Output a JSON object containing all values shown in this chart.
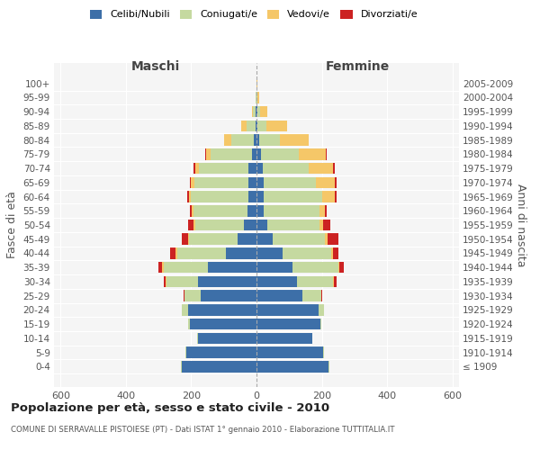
{
  "age_groups": [
    "100+",
    "95-99",
    "90-94",
    "85-89",
    "80-84",
    "75-79",
    "70-74",
    "65-69",
    "60-64",
    "55-59",
    "50-54",
    "45-49",
    "40-44",
    "35-39",
    "30-34",
    "25-29",
    "20-24",
    "15-19",
    "10-14",
    "5-9",
    "0-4"
  ],
  "birth_years": [
    "≤ 1909",
    "1910-1914",
    "1915-1919",
    "1920-1924",
    "1925-1929",
    "1930-1934",
    "1935-1939",
    "1940-1944",
    "1945-1949",
    "1950-1954",
    "1955-1959",
    "1960-1964",
    "1965-1969",
    "1970-1974",
    "1975-1979",
    "1980-1984",
    "1985-1989",
    "1990-1994",
    "1995-1999",
    "2000-2004",
    "2005-2009"
  ],
  "males": {
    "celibi": [
      0,
      1,
      2,
      4,
      8,
      15,
      25,
      25,
      25,
      28,
      38,
      58,
      95,
      150,
      180,
      170,
      210,
      205,
      180,
      215,
      230
    ],
    "coniugati": [
      1,
      2,
      8,
      25,
      70,
      125,
      150,
      165,
      175,
      165,
      150,
      148,
      148,
      135,
      95,
      50,
      18,
      4,
      2,
      2,
      2
    ],
    "vedovi": [
      0,
      0,
      4,
      18,
      22,
      14,
      13,
      10,
      7,
      5,
      4,
      4,
      4,
      3,
      2,
      1,
      0,
      0,
      0,
      0,
      0
    ],
    "divorziati": [
      0,
      0,
      0,
      0,
      0,
      4,
      4,
      4,
      5,
      5,
      18,
      18,
      18,
      12,
      7,
      3,
      0,
      0,
      0,
      0,
      0
    ]
  },
  "females": {
    "nubili": [
      0,
      1,
      2,
      4,
      8,
      15,
      20,
      22,
      22,
      22,
      32,
      50,
      80,
      110,
      125,
      140,
      190,
      195,
      170,
      205,
      220
    ],
    "coniugate": [
      1,
      2,
      8,
      25,
      65,
      115,
      140,
      160,
      180,
      170,
      160,
      160,
      150,
      140,
      110,
      58,
      18,
      4,
      2,
      2,
      2
    ],
    "vedove": [
      1,
      4,
      22,
      65,
      88,
      82,
      75,
      58,
      38,
      18,
      13,
      8,
      4,
      4,
      3,
      1,
      0,
      0,
      0,
      0,
      0
    ],
    "divorziate": [
      0,
      0,
      0,
      0,
      0,
      4,
      4,
      4,
      5,
      4,
      22,
      32,
      18,
      13,
      8,
      2,
      0,
      0,
      0,
      0,
      0
    ]
  },
  "colors": {
    "celibi": "#3d6fa8",
    "coniugati": "#c5d9a0",
    "vedovi": "#f5c768",
    "divorziati": "#cc2222"
  },
  "xlim": 620,
  "title": "Popolazione per età, sesso e stato civile - 2010",
  "subtitle": "COMUNE DI SERRAVALLE PISTOIESE (PT) - Dati ISTAT 1° gennaio 2010 - Elaborazione TUTTITALIA.IT",
  "ylabel_left": "Fasce di età",
  "ylabel_right": "Anni di nascita",
  "xlabel_left": "Maschi",
  "xlabel_right": "Femmine"
}
